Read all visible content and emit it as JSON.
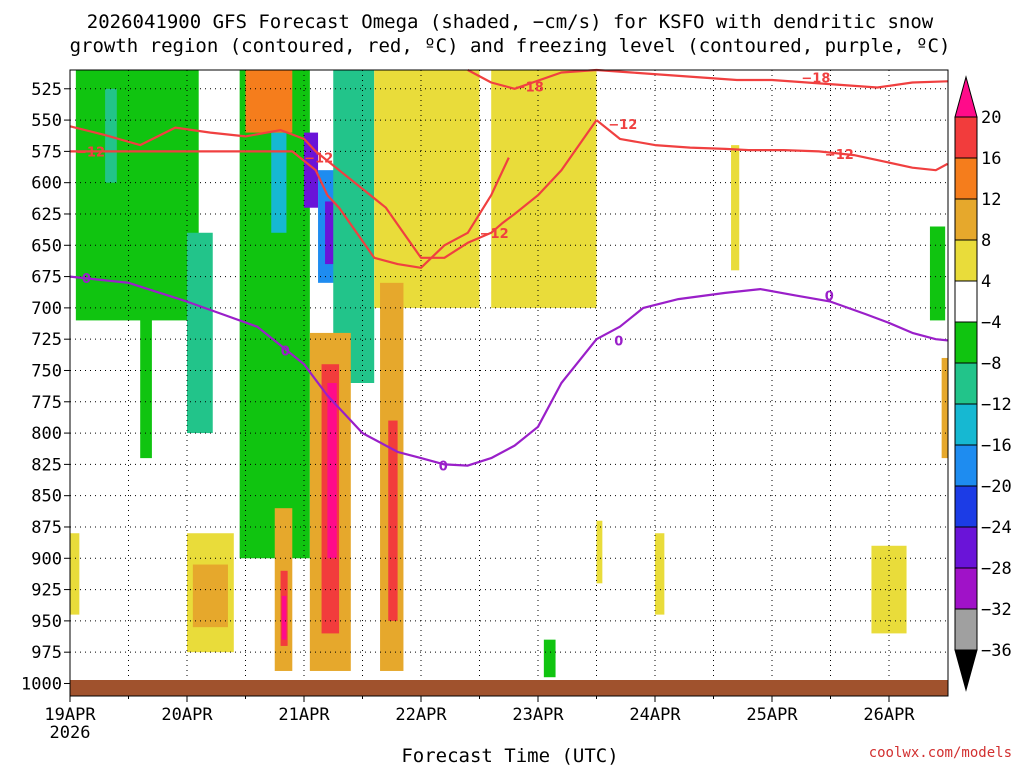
{
  "title_line1": "2026041900 GFS Forecast Omega (shaded, −cm/s) for KSFO with dendritic snow",
  "title_line2": "growth region (contoured, red, ºC) and freezing level (contoured, purple, ºC)",
  "credit": "coolwx.com/models",
  "chart_data": {
    "type": "heatmap",
    "title": "2026041900 GFS Forecast Omega (shaded, −cm/s) for KSFO with dendritic snow growth region (contoured, red, ºC) and freezing level (contoured, purple, ºC)",
    "xlabel": "Forecast Time (UTC)",
    "ylabel": "",
    "x_range_days": [
      0,
      7.5
    ],
    "y_range_hpa": [
      1010,
      510
    ],
    "y_reversed": true,
    "grid": true,
    "x_ticks": [
      {
        "day": 0,
        "label": "19APR",
        "sublabel": "2026"
      },
      {
        "day": 1,
        "label": "20APR"
      },
      {
        "day": 2,
        "label": "21APR"
      },
      {
        "day": 3,
        "label": "22APR"
      },
      {
        "day": 4,
        "label": "23APR"
      },
      {
        "day": 5,
        "label": "24APR"
      },
      {
        "day": 6,
        "label": "25APR"
      },
      {
        "day": 7,
        "label": "26APR"
      }
    ],
    "y_ticks": [
      525,
      550,
      575,
      600,
      625,
      650,
      675,
      700,
      725,
      750,
      775,
      800,
      825,
      850,
      875,
      900,
      925,
      950,
      975,
      1000
    ],
    "colorbar": {
      "labels": [
        "20",
        "16",
        "12",
        "8",
        "4",
        "−4",
        "−8",
        "−12",
        "−16",
        "−20",
        "−24",
        "−28",
        "−32",
        "−36"
      ],
      "bins": [
        {
          "color": "#ff0b8a",
          "label": "above 20"
        },
        {
          "color": "#f23c3c",
          "label": "16 to 20"
        },
        {
          "color": "#f57d1c",
          "label": "12 to 16"
        },
        {
          "color": "#e6a82c",
          "label": "8 to 12"
        },
        {
          "color": "#e9dc3a",
          "label": "4 to 8"
        },
        {
          "color": "#ffffff",
          "label": "-4 to 4"
        },
        {
          "color": "#10c410",
          "label": "-8 to -4"
        },
        {
          "color": "#22c48a",
          "label": "-12 to -8"
        },
        {
          "color": "#16b8d2",
          "label": "-16 to -12"
        },
        {
          "color": "#1e8cf0",
          "label": "-20 to -16"
        },
        {
          "color": "#1c3ce6",
          "label": "-24 to -20"
        },
        {
          "color": "#6a14d8",
          "label": "-28 to -24"
        },
        {
          "color": "#a012c8",
          "label": "-32 to -28"
        },
        {
          "color": "#a0a0a0",
          "label": "-36 to -32"
        },
        {
          "color": "#000000",
          "label": "below -36"
        }
      ]
    },
    "shaded_regions": [
      {
        "bin": "-8 to -4",
        "day": [
          0.05,
          1.1
        ],
        "p": [
          510,
          710
        ]
      },
      {
        "bin": "-12 to -8",
        "day": [
          0.3,
          0.4
        ],
        "p": [
          525,
          600
        ]
      },
      {
        "bin": "-8 to -4",
        "day": [
          0.6,
          0.7
        ],
        "p": [
          690,
          820
        ]
      },
      {
        "bin": "-12 to -8",
        "day": [
          1.0,
          1.22
        ],
        "p": [
          640,
          800
        ]
      },
      {
        "bin": "-8 to -4",
        "day": [
          1.45,
          2.05
        ],
        "p": [
          510,
          900
        ]
      },
      {
        "bin": "-16 to -12",
        "day": [
          1.72,
          1.85
        ],
        "p": [
          560,
          640
        ]
      },
      {
        "bin": "-28 to -24",
        "day": [
          2.0,
          2.12
        ],
        "p": [
          560,
          620
        ]
      },
      {
        "bin": "-20 to -16",
        "day": [
          2.12,
          2.3
        ],
        "p": [
          590,
          680
        ]
      },
      {
        "bin": "-28 to -24",
        "day": [
          2.18,
          2.26
        ],
        "p": [
          615,
          665
        ]
      },
      {
        "bin": "-12 to -8",
        "day": [
          2.25,
          2.6
        ],
        "p": [
          510,
          760
        ]
      },
      {
        "bin": "4 to 8",
        "day": [
          0.0,
          0.08
        ],
        "p": [
          880,
          945
        ]
      },
      {
        "bin": "4 to 8",
        "day": [
          1.0,
          1.4
        ],
        "p": [
          880,
          975
        ]
      },
      {
        "bin": "8 to 12",
        "day": [
          1.05,
          1.35
        ],
        "p": [
          905,
          955
        ]
      },
      {
        "bin": "12 to 16",
        "day": [
          1.5,
          1.9
        ],
        "p": [
          510,
          560
        ]
      },
      {
        "bin": "4 to 8",
        "day": [
          2.6,
          3.5
        ],
        "p": [
          510,
          700
        ]
      },
      {
        "bin": "8 to 12",
        "day": [
          1.75,
          1.9
        ],
        "p": [
          860,
          990
        ]
      },
      {
        "bin": "16 to 20",
        "day": [
          1.8,
          1.86
        ],
        "p": [
          910,
          970
        ]
      },
      {
        "bin": "above 20",
        "day": [
          1.81,
          1.85
        ],
        "p": [
          930,
          965
        ]
      },
      {
        "bin": "8 to 12",
        "day": [
          2.05,
          2.4
        ],
        "p": [
          720,
          990
        ]
      },
      {
        "bin": "16 to 20",
        "day": [
          2.15,
          2.3
        ],
        "p": [
          745,
          960
        ]
      },
      {
        "bin": "above 20",
        "day": [
          2.2,
          2.28
        ],
        "p": [
          760,
          900
        ]
      },
      {
        "bin": "8 to 12",
        "day": [
          2.65,
          2.85
        ],
        "p": [
          680,
          990
        ]
      },
      {
        "bin": "16 to 20",
        "day": [
          2.72,
          2.8
        ],
        "p": [
          790,
          950
        ]
      },
      {
        "bin": "4 to 8",
        "day": [
          3.6,
          4.5
        ],
        "p": [
          510,
          700
        ]
      },
      {
        "bin": "4 to 8",
        "day": [
          4.5,
          4.55
        ],
        "p": [
          870,
          920
        ]
      },
      {
        "bin": "-8 to -4",
        "day": [
          4.05,
          4.15
        ],
        "p": [
          965,
          995
        ]
      },
      {
        "bin": "4 to 8",
        "day": [
          5.0,
          5.08
        ],
        "p": [
          880,
          945
        ]
      },
      {
        "bin": "4 to 8",
        "day": [
          5.65,
          5.72
        ],
        "p": [
          570,
          670
        ]
      },
      {
        "bin": "4 to 8",
        "day": [
          6.85,
          7.15
        ],
        "p": [
          890,
          960
        ]
      },
      {
        "bin": "-8 to -4",
        "day": [
          7.35,
          7.48
        ],
        "p": [
          635,
          710
        ]
      },
      {
        "bin": "8 to 12",
        "day": [
          7.45,
          7.5
        ],
        "p": [
          740,
          820
        ]
      }
    ],
    "series": [
      {
        "name": "−12",
        "color": "#f04040",
        "x": [
          0,
          0.3,
          0.6,
          0.9,
          1.2,
          1.5,
          1.8,
          2.0,
          2.1,
          2.3,
          2.5,
          2.7,
          2.85,
          3.0,
          3.2,
          3.4,
          3.6,
          3.7,
          3.8,
          4.0,
          4.2,
          4.5
        ],
        "y": [
          555,
          562,
          570,
          556,
          560,
          563,
          558,
          565,
          575,
          590,
          605,
          620,
          640,
          660,
          660,
          648,
          640,
          632,
          625,
          610,
          590,
          550
        ]
      },
      {
        "name": "−12",
        "color": "#f04040",
        "x": [
          0,
          1.9,
          2.1,
          2.2,
          2.3,
          2.45,
          2.6,
          2.8,
          3.0,
          3.2,
          3.4,
          3.6,
          3.75
        ],
        "y": [
          575,
          575,
          590,
          610,
          620,
          640,
          660,
          665,
          668,
          650,
          640,
          610,
          580
        ]
      },
      {
        "name": "−12",
        "color": "#f04040",
        "x": [
          4.5,
          4.7,
          5.0,
          5.3,
          5.6,
          5.8,
          6.1,
          6.4,
          6.7,
          7.0,
          7.2,
          7.4,
          7.5
        ],
        "y": [
          550,
          565,
          570,
          572,
          573,
          574,
          574,
          575,
          578,
          584,
          588,
          590,
          585
        ]
      },
      {
        "name": "−18",
        "color": "#f04040",
        "x": [
          3.4,
          3.6,
          3.8,
          4.2,
          4.5,
          4.8,
          5.1,
          5.4,
          5.7,
          6.0,
          6.3,
          6.6,
          6.9,
          7.2,
          7.5
        ],
        "y": [
          510,
          520,
          525,
          512,
          510,
          512,
          514,
          516,
          518,
          518,
          520,
          522,
          524,
          520,
          519
        ]
      },
      {
        "name": "0",
        "color": "#9a1fc9",
        "x": [
          0,
          0.5,
          1.0,
          1.3,
          1.6,
          1.8,
          2.0,
          2.2,
          2.5,
          2.8,
          3.0,
          3.2,
          3.4,
          3.6,
          3.8,
          4.0,
          4.2,
          4.5,
          4.7,
          4.9,
          5.2,
          5.6,
          5.9,
          6.2,
          6.5,
          6.8,
          7.0,
          7.2,
          7.4,
          7.5
        ],
        "y": [
          675,
          680,
          695,
          705,
          715,
          730,
          745,
          770,
          800,
          815,
          820,
          825,
          826,
          820,
          810,
          795,
          760,
          725,
          715,
          700,
          693,
          688,
          685,
          690,
          695,
          705,
          712,
          720,
          725,
          726
        ]
      }
    ],
    "contour_labels": [
      {
        "text": "−12",
        "day": 0.0,
        "p": 575
      },
      {
        "text": "−12",
        "day": 1.95,
        "p": 580
      },
      {
        "text": "−12",
        "day": 3.45,
        "p": 640
      },
      {
        "text": "−18",
        "day": 3.75,
        "p": 523
      },
      {
        "text": "−12",
        "day": 4.55,
        "p": 553
      },
      {
        "text": "−12",
        "day": 6.4,
        "p": 577
      },
      {
        "text": "−18",
        "day": 6.2,
        "p": 516
      },
      {
        "text": "0",
        "day": 0.05,
        "p": 676
      },
      {
        "text": "0",
        "day": 1.75,
        "p": 734
      },
      {
        "text": "0",
        "day": 3.1,
        "p": 826
      },
      {
        "text": "0",
        "day": 4.6,
        "p": 726
      },
      {
        "text": "0",
        "day": 6.4,
        "p": 690
      }
    ]
  }
}
